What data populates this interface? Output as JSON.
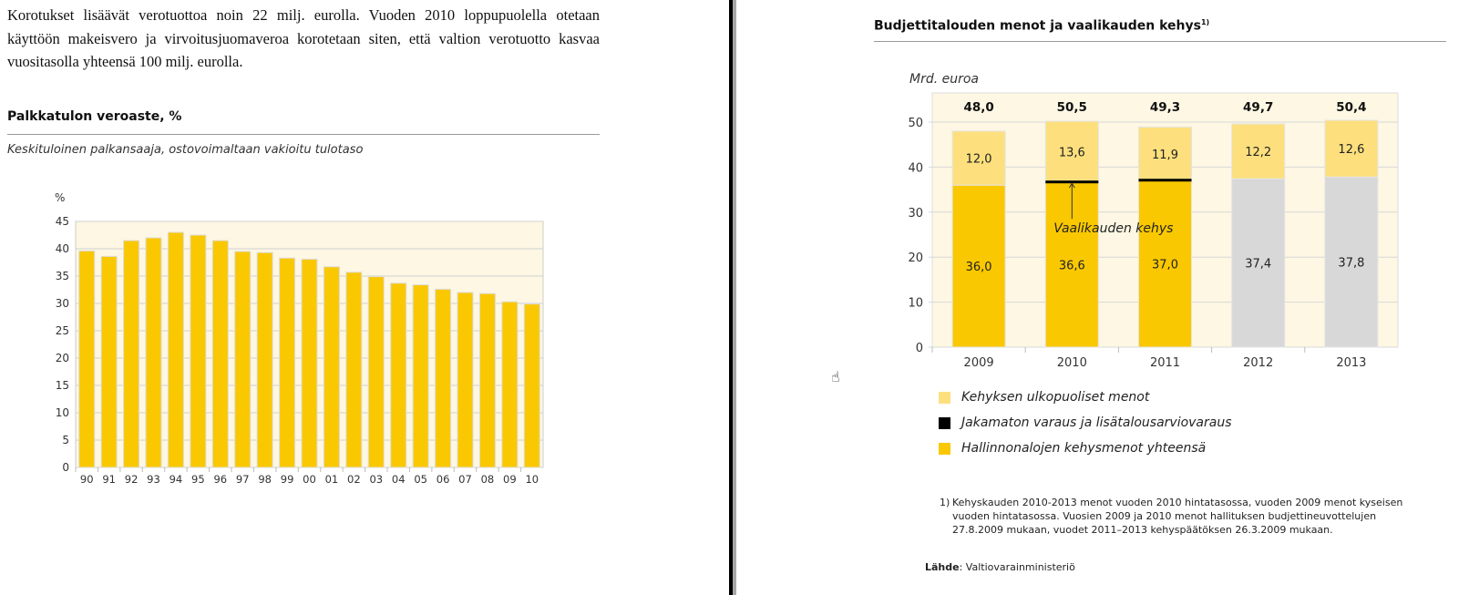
{
  "paragraph": "Korotukset lisäävät verotuottoa noin 22 milj. eurolla. Vuoden 2010 loppupuolella otetaan käyttöön makeisvero ja virvoitusjuomaveroa korotetaan siten, että valtion verotuotto kasvaa vuositasolla yhteensä 100 milj. eurolla.",
  "colors": {
    "bar": "#fac800",
    "light": "#fde07d",
    "gray": "#d8d8d8",
    "plot_bg": "#fdf7e3",
    "black": "#000000"
  },
  "chart_data": [
    {
      "type": "bar",
      "title": "Palkkatulon veroaste, %",
      "subtitle": "Keskituloinen palkansaaja, ostovoimaltaan vakioitu tulotaso",
      "ylabel": "%",
      "xlabel": "",
      "ylim": [
        0,
        45
      ],
      "yticks": [
        0,
        5,
        10,
        15,
        20,
        25,
        30,
        35,
        40,
        45
      ],
      "grid": true,
      "categories": [
        "90",
        "91",
        "92",
        "93",
        "94",
        "95",
        "96",
        "97",
        "98",
        "99",
        "00",
        "01",
        "02",
        "03",
        "04",
        "05",
        "06",
        "07",
        "08",
        "09",
        "10"
      ],
      "values": [
        39.6,
        38.6,
        41.5,
        42.0,
        43.0,
        42.5,
        41.5,
        39.5,
        39.3,
        38.3,
        38.1,
        36.7,
        35.7,
        34.9,
        33.7,
        33.4,
        32.6,
        32.0,
        31.8,
        30.3,
        29.9
      ]
    },
    {
      "type": "bar",
      "stacked": true,
      "title": "Budjettitalouden menot ja vaalikauden kehys",
      "title_sup": "1)",
      "ylabel": "Mrd. euroa",
      "ylim": [
        0,
        50
      ],
      "yticks": [
        0,
        10,
        20,
        30,
        40,
        50
      ],
      "grid": true,
      "categories": [
        "2009",
        "2010",
        "2011",
        "2012",
        "2013"
      ],
      "totals": [
        "48,0",
        "50,5",
        "49,3",
        "49,7",
        "50,4"
      ],
      "series": [
        {
          "name": "Hallinnonalojen kehysmenot yhteensä",
          "values": [
            36.0,
            36.6,
            37.0,
            37.4,
            37.8
          ],
          "labels": [
            "36,0",
            "36,6",
            "37,0",
            "37,4",
            "37,8"
          ]
        },
        {
          "name": "Jakamaton varaus ja lisätalousarviovaraus",
          "values": [
            0,
            0.3,
            0.4,
            0,
            0
          ]
        },
        {
          "name": "Kehyksen ulkopuoliset menot",
          "values": [
            12.0,
            13.6,
            11.9,
            12.2,
            12.6
          ],
          "labels": [
            "12,0",
            "13,6",
            "11,9",
            "12,2",
            "12,6"
          ]
        }
      ],
      "legend": [
        "Kehyksen ulkopuoliset menot",
        "Jakamaton varaus ja lisätalousarviovaraus",
        "Hallinnonalojen kehysmenot yhteensä"
      ],
      "legend_placement": "bottom",
      "annotation": "Vaalikauden kehys",
      "footnote_marker": "1)",
      "footnote": "Kehyskauden 2010-2013 menot vuoden 2010 hintatasossa, vuoden 2009 menot kyseisen vuoden hintatasossa. Vuosien 2009 ja 2010 menot hallituksen budjettineuvottelujen 27.8.2009 mukaan, vuodet 2011–2013 kehyspäätöksen 26.3.2009 mukaan.",
      "source_label": "Lähde",
      "source": ": Valtiovarainministeriö"
    }
  ]
}
